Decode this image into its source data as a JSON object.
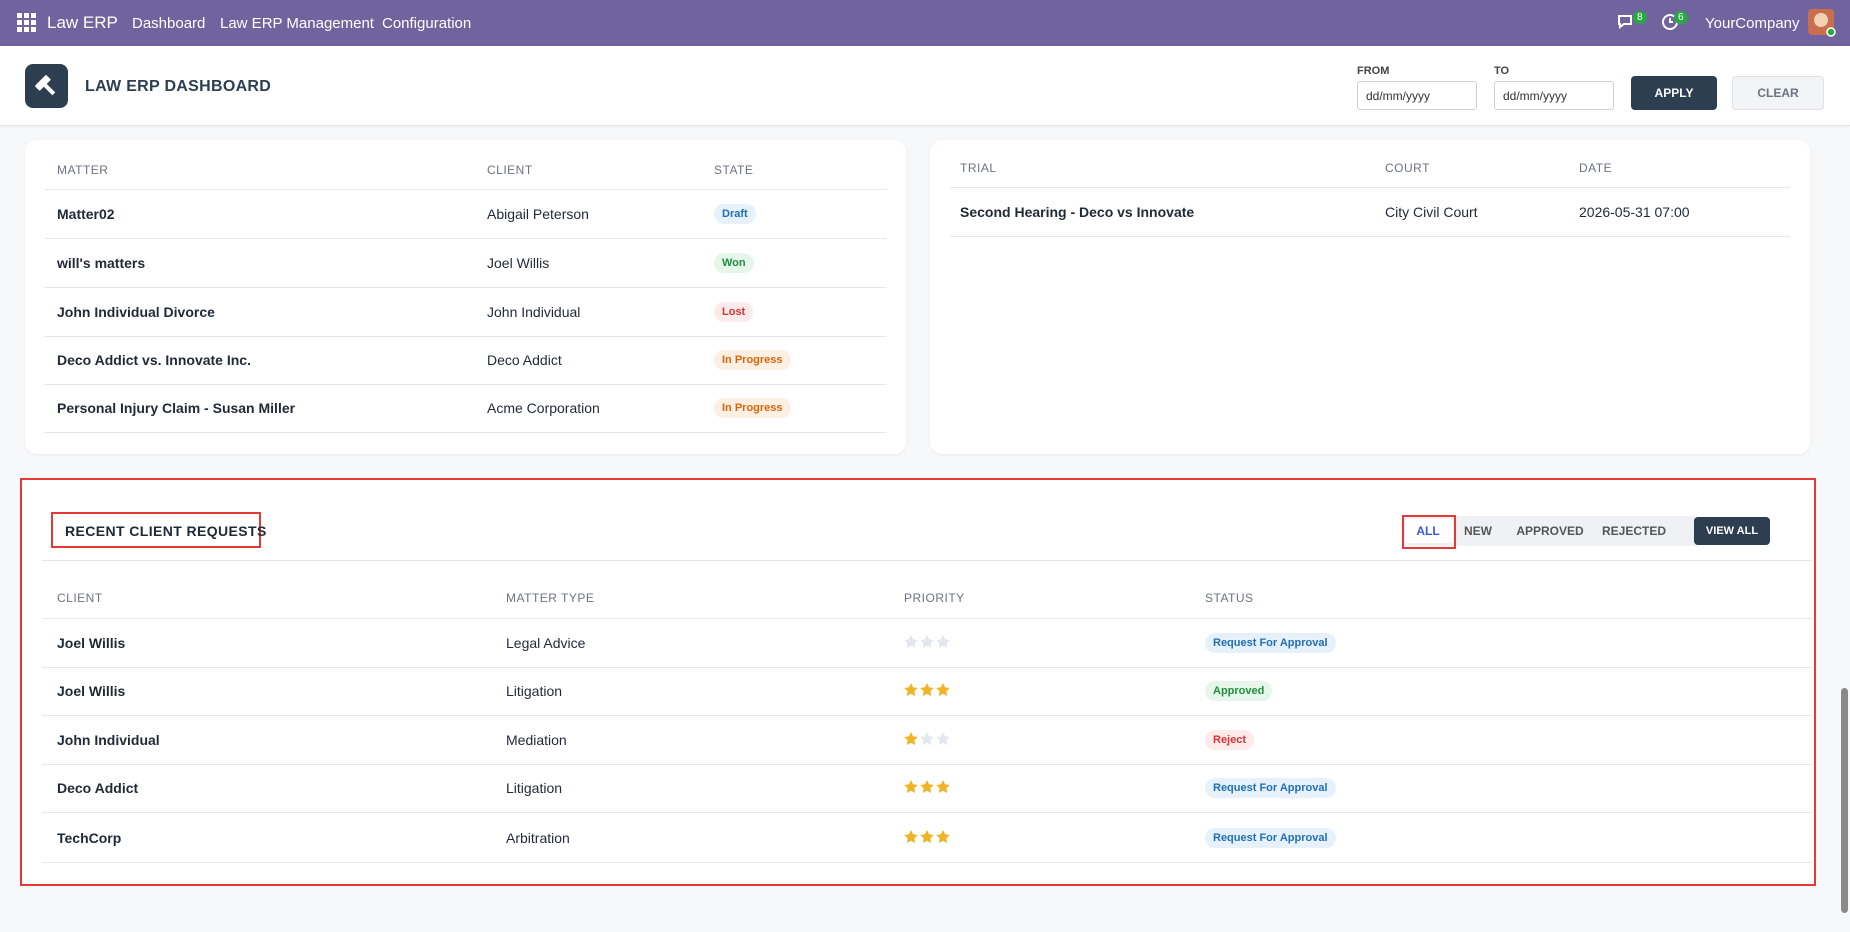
{
  "navbar": {
    "app": "Law ERP",
    "menu": [
      "Dashboard",
      "Law ERP Management",
      "Configuration"
    ],
    "messages_count": 8,
    "activities_count": 6,
    "company": "YourCompany"
  },
  "header": {
    "title": "LAW ERP DASHBOARD",
    "from_label": "FROM",
    "to_label": "TO",
    "date_placeholder": "dd/mm/yyyy",
    "apply": "APPLY",
    "clear": "CLEAR"
  },
  "matters": {
    "headers": [
      "MATTER",
      "CLIENT",
      "STATE"
    ],
    "rows": [
      {
        "matter": "Matter02",
        "client": "Abigail Peterson",
        "state": "Draft",
        "state_color": "#1f6fb5",
        "state_bg": "#e6f1fb"
      },
      {
        "matter": "will's matters",
        "client": "Joel Willis",
        "state": "Won",
        "state_color": "#1e8e3e",
        "state_bg": "#e6f6ea"
      },
      {
        "matter": "John Individual Divorce",
        "client": "John Individual",
        "state": "Lost",
        "state_color": "#d63333",
        "state_bg": "#fdeaea"
      },
      {
        "matter": "Deco Addict vs. Innovate Inc.",
        "client": "Deco Addict",
        "state": "In Progress",
        "state_color": "#d9640c",
        "state_bg": "#fdf0e3"
      },
      {
        "matter": "Personal Injury Claim - Susan Miller",
        "client": "Acme Corporation",
        "state": "In Progress",
        "state_color": "#d9640c",
        "state_bg": "#fdf0e3"
      }
    ]
  },
  "trials": {
    "headers": [
      "TRIAL",
      "COURT",
      "DATE"
    ],
    "rows": [
      {
        "trial": "Second Hearing - Deco vs Innovate",
        "court": "City Civil Court",
        "date": "2026-05-31 07:00"
      }
    ]
  },
  "requests": {
    "title": "RECENT CLIENT REQUESTS",
    "filters": [
      "ALL",
      "NEW",
      "APPROVED",
      "REJECTED"
    ],
    "view_all": "VIEW ALL",
    "headers": [
      "CLIENT",
      "MATTER TYPE",
      "PRIORITY",
      "STATUS"
    ],
    "star_color": "#f0b429",
    "rows": [
      {
        "client": "Joel Willis",
        "matter_type": "Legal Advice",
        "priority": 0,
        "status": "Request For Approval",
        "status_color": "#1f6fb5",
        "status_bg": "#e6f1fb"
      },
      {
        "client": "Joel Willis",
        "matter_type": "Litigation",
        "priority": 3,
        "status": "Approved",
        "status_color": "#1e8e3e",
        "status_bg": "#e6f6ea"
      },
      {
        "client": "John Individual",
        "matter_type": "Mediation",
        "priority": 1,
        "status": "Reject",
        "status_color": "#d63333",
        "status_bg": "#fdeaea"
      },
      {
        "client": "Deco Addict",
        "matter_type": "Litigation",
        "priority": 3,
        "status": "Request For Approval",
        "status_color": "#1f6fb5",
        "status_bg": "#e6f1fb"
      },
      {
        "client": "TechCorp",
        "matter_type": "Arbitration",
        "priority": 3,
        "status": "Request For Approval",
        "status_color": "#1f6fb5",
        "status_bg": "#e6f1fb"
      }
    ]
  }
}
